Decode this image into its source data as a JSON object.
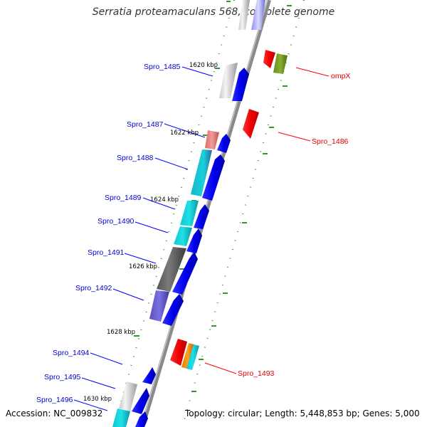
{
  "title": "Serratia proteamaculans 568, complete genome",
  "accession": "Accession: NC_009832",
  "summary": "Topology: circular; Length: 5,448,853 bp; Genes: 5,000",
  "colors": {
    "backbone": "#8a8a8a",
    "tick": "#2e9a2e",
    "forward_label": "#0000cc",
    "reverse_label": "#dd0000"
  },
  "tick_labels": [
    "1620 kbp",
    "1622 kbp",
    "1624 kbp",
    "1626 kbp",
    "1628 kbp",
    "1630 kbp"
  ],
  "forward_genes": [
    "Spro_1485",
    "Spro_1487",
    "Spro_1488",
    "Spro_1489",
    "Spro_1490",
    "Spro_1491",
    "Spro_1492",
    "Spro_1494",
    "Spro_1495",
    "Spro_1496"
  ],
  "reverse_genes": [
    "ompX",
    "Spro_1486",
    "Spro_1493"
  ]
}
